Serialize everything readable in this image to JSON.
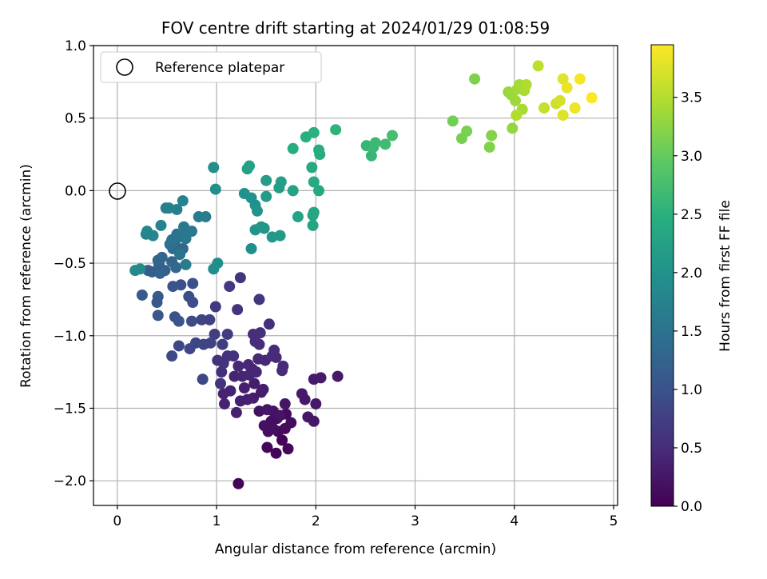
{
  "chart_data": {
    "type": "scatter",
    "title": "FOV centre drift starting at 2024/01/29 01:08:59",
    "xlabel": "Angular distance from reference (arcmin)",
    "ylabel": "Rotation from reference (arcmin)",
    "xlim": [
      -0.24,
      5.04
    ],
    "ylim": [
      -2.17,
      1.0
    ],
    "xticks": [
      0,
      1,
      2,
      3,
      4,
      5
    ],
    "xtick_labels": [
      "0",
      "1",
      "2",
      "3",
      "4",
      "5"
    ],
    "yticks": [
      1.0,
      0.5,
      0.0,
      -0.5,
      -1.0,
      -1.5,
      -2.0
    ],
    "ytick_labels": [
      "1.0",
      "0.5",
      "0.0",
      "−0.5",
      "−1.0",
      "−1.5",
      "−2.0"
    ],
    "grid": true,
    "legend": {
      "position": "upper-left",
      "label": "Reference platepar"
    },
    "reference_point": {
      "x": 0,
      "y": 0
    },
    "colorbar": {
      "label": "Hours from first FF file",
      "colormap": "viridis",
      "range": [
        0.0,
        3.95
      ],
      "ticks": [
        0.0,
        0.5,
        1.0,
        1.5,
        2.0,
        2.5,
        3.0,
        3.5
      ],
      "tick_labels": [
        "0.0",
        "0.5",
        "1.0",
        "1.5",
        "2.0",
        "2.5",
        "3.0",
        "3.5"
      ]
    },
    "series": [
      {
        "values": [
          [
            1.22,
            -2.02,
            0.05
          ],
          [
            1.66,
            -1.72,
            0.05
          ],
          [
            1.51,
            -1.77,
            0.06
          ],
          [
            1.6,
            -1.81,
            0.06
          ],
          [
            1.72,
            -1.78,
            0.08
          ],
          [
            1.62,
            -1.66,
            0.1
          ],
          [
            1.69,
            -1.64,
            0.11
          ],
          [
            1.75,
            -1.6,
            0.12
          ],
          [
            1.7,
            -1.54,
            0.13
          ],
          [
            1.61,
            -1.57,
            0.14
          ],
          [
            1.55,
            -1.59,
            0.15
          ],
          [
            1.52,
            -1.66,
            0.16
          ],
          [
            1.57,
            -1.64,
            0.17
          ],
          [
            1.48,
            -1.62,
            0.18
          ],
          [
            1.43,
            -1.52,
            0.19
          ],
          [
            1.57,
            -1.52,
            0.2
          ],
          [
            1.64,
            -1.55,
            0.22
          ],
          [
            1.69,
            -1.47,
            0.23
          ],
          [
            1.51,
            -1.51,
            0.24
          ],
          [
            1.92,
            -1.56,
            0.25
          ],
          [
            1.98,
            -1.59,
            0.25
          ],
          [
            2.0,
            -1.47,
            0.26
          ],
          [
            1.86,
            -1.4,
            0.27
          ],
          [
            1.89,
            -1.44,
            0.28
          ],
          [
            1.98,
            -1.3,
            0.29
          ],
          [
            2.05,
            -1.29,
            0.29
          ],
          [
            2.22,
            -1.28,
            0.27
          ],
          [
            1.45,
            -1.39,
            0.3
          ],
          [
            1.38,
            -1.33,
            0.32
          ],
          [
            1.37,
            -1.43,
            0.33
          ],
          [
            1.47,
            -1.37,
            0.33
          ],
          [
            1.31,
            -1.44,
            0.34
          ],
          [
            1.28,
            -1.36,
            0.35
          ],
          [
            1.24,
            -1.45,
            0.36
          ],
          [
            1.2,
            -1.53,
            0.37
          ],
          [
            1.08,
            -1.47,
            0.38
          ],
          [
            1.07,
            -1.4,
            0.38
          ],
          [
            1.14,
            -1.38,
            0.39
          ],
          [
            1.18,
            -1.28,
            0.4
          ],
          [
            1.26,
            -1.28,
            0.41
          ],
          [
            1.33,
            -1.27,
            0.42
          ],
          [
            1.36,
            -1.23,
            0.42
          ],
          [
            1.4,
            -1.25,
            0.43
          ],
          [
            1.32,
            -1.2,
            0.44
          ],
          [
            1.22,
            -1.21,
            0.45
          ],
          [
            1.42,
            -1.16,
            0.46
          ],
          [
            1.49,
            -1.17,
            0.46
          ],
          [
            1.6,
            -1.15,
            0.47
          ],
          [
            1.67,
            -1.21,
            0.48
          ],
          [
            1.66,
            -1.24,
            0.48
          ],
          [
            1.56,
            -1.14,
            0.49
          ],
          [
            1.58,
            -1.1,
            0.5
          ],
          [
            1.43,
            -1.06,
            0.5
          ],
          [
            1.39,
            -1.04,
            0.51
          ],
          [
            1.37,
            -0.99,
            0.52
          ],
          [
            1.44,
            -0.98,
            0.53
          ],
          [
            1.53,
            -0.92,
            0.54
          ],
          [
            1.05,
            -1.25,
            0.55
          ],
          [
            1.01,
            -1.17,
            0.56
          ],
          [
            1.07,
            -1.19,
            0.57
          ],
          [
            1.11,
            -1.14,
            0.58
          ],
          [
            1.17,
            -1.14,
            0.58
          ],
          [
            1.04,
            -1.33,
            0.59
          ],
          [
            1.21,
            -0.82,
            0.6
          ],
          [
            1.24,
            -0.6,
            0.62
          ],
          [
            1.43,
            -0.75,
            0.64
          ],
          [
            1.13,
            -0.66,
            0.66
          ],
          [
            0.99,
            -0.8,
            0.68
          ],
          [
            1.11,
            -0.99,
            0.7
          ],
          [
            1.06,
            -1.06,
            0.72
          ],
          [
            0.98,
            -0.99,
            0.74
          ],
          [
            0.93,
            -0.89,
            0.76
          ],
          [
            0.94,
            -1.05,
            0.78
          ],
          [
            0.85,
            -0.89,
            0.8
          ],
          [
            0.87,
            -1.06,
            0.81
          ],
          [
            0.79,
            -1.05,
            0.82
          ],
          [
            0.86,
            -1.3,
            0.83
          ],
          [
            0.73,
            -1.09,
            0.84
          ],
          [
            0.62,
            -1.07,
            0.86
          ],
          [
            0.55,
            -1.14,
            0.88
          ],
          [
            0.75,
            -0.9,
            0.9
          ],
          [
            0.76,
            -0.77,
            0.92
          ],
          [
            0.72,
            -0.73,
            0.94
          ],
          [
            0.76,
            -0.64,
            0.96
          ],
          [
            0.64,
            -0.65,
            0.98
          ],
          [
            0.56,
            -0.66,
            1.0
          ],
          [
            0.58,
            -0.87,
            1.02
          ],
          [
            0.62,
            -0.9,
            1.04
          ],
          [
            0.41,
            -0.86,
            1.06
          ],
          [
            0.4,
            -0.77,
            1.08
          ],
          [
            0.41,
            -0.73,
            1.1
          ],
          [
            0.25,
            -0.72,
            1.12
          ],
          [
            0.35,
            -0.56,
            1.14
          ],
          [
            0.31,
            -0.55,
            1.16
          ],
          [
            0.42,
            -0.55,
            1.18
          ],
          [
            0.48,
            -0.55,
            1.2
          ],
          [
            0.42,
            -0.51,
            1.22
          ],
          [
            0.43,
            -0.57,
            1.24
          ],
          [
            0.41,
            -0.48,
            1.26
          ],
          [
            0.45,
            -0.46,
            1.28
          ],
          [
            0.55,
            -0.49,
            1.3
          ],
          [
            0.59,
            -0.53,
            1.32
          ],
          [
            0.66,
            -0.4,
            1.34
          ],
          [
            0.56,
            -0.4,
            1.36
          ],
          [
            0.58,
            -0.37,
            1.38
          ],
          [
            0.55,
            -0.34,
            1.4
          ],
          [
            0.53,
            -0.37,
            1.42
          ],
          [
            0.58,
            -0.34,
            1.44
          ],
          [
            0.6,
            -0.3,
            1.46
          ],
          [
            0.62,
            -0.32,
            1.48
          ],
          [
            0.55,
            -0.34,
            1.5
          ],
          [
            0.63,
            -0.44,
            1.52
          ],
          [
            0.67,
            -0.29,
            1.54
          ],
          [
            0.69,
            -0.33,
            1.56
          ],
          [
            0.75,
            -0.28,
            1.58
          ],
          [
            0.67,
            -0.25,
            1.6
          ],
          [
            0.69,
            -0.51,
            1.62
          ],
          [
            0.82,
            -0.18,
            1.64
          ],
          [
            0.89,
            -0.18,
            1.66
          ],
          [
            0.6,
            -0.13,
            1.68
          ],
          [
            0.49,
            -0.12,
            1.7
          ],
          [
            0.52,
            -0.12,
            1.72
          ],
          [
            0.66,
            -0.07,
            1.74
          ],
          [
            0.44,
            -0.24,
            1.76
          ],
          [
            0.29,
            -0.3,
            1.78
          ],
          [
            0.36,
            -0.31,
            1.8
          ],
          [
            0.3,
            -0.28,
            1.82
          ],
          [
            0.23,
            -0.54,
            1.84
          ],
          [
            0.18,
            -0.55,
            1.86
          ],
          [
            0.97,
            -0.54,
            1.9
          ],
          [
            1.01,
            -0.5,
            1.92
          ],
          [
            1.35,
            -0.4,
            1.94
          ],
          [
            0.97,
            0.16,
            1.95
          ],
          [
            0.99,
            0.01,
            1.96
          ],
          [
            1.28,
            -0.02,
            1.97
          ],
          [
            1.35,
            -0.05,
            1.99
          ],
          [
            1.39,
            -0.1,
            2.0
          ],
          [
            1.41,
            -0.14,
            2.02
          ],
          [
            1.39,
            -0.27,
            2.04
          ],
          [
            1.45,
            -0.25,
            2.06
          ],
          [
            1.48,
            -0.26,
            2.08
          ],
          [
            1.56,
            -0.32,
            2.1
          ],
          [
            1.64,
            -0.31,
            2.12
          ],
          [
            1.5,
            -0.04,
            2.14
          ],
          [
            1.5,
            0.07,
            2.16
          ],
          [
            1.63,
            0.02,
            2.18
          ],
          [
            1.65,
            0.06,
            2.2
          ],
          [
            1.31,
            0.15,
            2.22
          ],
          [
            1.33,
            0.17,
            2.24
          ],
          [
            1.77,
            0.0,
            2.26
          ],
          [
            1.82,
            -0.18,
            2.28
          ],
          [
            1.97,
            -0.24,
            2.3
          ],
          [
            1.97,
            -0.17,
            2.32
          ],
          [
            1.98,
            -0.15,
            2.34
          ],
          [
            2.03,
            0.0,
            2.36
          ],
          [
            1.98,
            0.06,
            2.38
          ],
          [
            1.96,
            0.16,
            2.4
          ],
          [
            2.04,
            0.25,
            2.42
          ],
          [
            2.03,
            0.28,
            2.44
          ],
          [
            1.77,
            0.29,
            2.46
          ],
          [
            1.9,
            0.37,
            2.48
          ],
          [
            1.98,
            0.4,
            2.5
          ],
          [
            2.2,
            0.42,
            2.55
          ],
          [
            2.51,
            0.31,
            2.6
          ],
          [
            2.56,
            0.24,
            2.62
          ],
          [
            2.58,
            0.3,
            2.64
          ],
          [
            2.6,
            0.33,
            2.66
          ],
          [
            2.7,
            0.32,
            2.7
          ],
          [
            2.77,
            0.38,
            2.75
          ],
          [
            3.38,
            0.48,
            3.1
          ],
          [
            3.47,
            0.36,
            3.12
          ],
          [
            3.52,
            0.41,
            3.14
          ],
          [
            3.6,
            0.77,
            3.16
          ],
          [
            3.75,
            0.3,
            3.18
          ],
          [
            3.77,
            0.38,
            3.2
          ],
          [
            3.98,
            0.43,
            3.3
          ],
          [
            3.94,
            0.68,
            3.32
          ],
          [
            3.97,
            0.66,
            3.34
          ],
          [
            4.01,
            0.62,
            3.36
          ],
          [
            4.03,
            0.7,
            3.38
          ],
          [
            4.05,
            0.73,
            3.4
          ],
          [
            4.08,
            0.56,
            3.42
          ],
          [
            4.1,
            0.69,
            3.44
          ],
          [
            4.12,
            0.73,
            3.46
          ],
          [
            4.02,
            0.52,
            3.48
          ],
          [
            4.24,
            0.86,
            3.55
          ],
          [
            4.3,
            0.57,
            3.6
          ],
          [
            4.42,
            0.6,
            3.65
          ],
          [
            4.46,
            0.62,
            3.7
          ],
          [
            4.49,
            0.52,
            3.75
          ],
          [
            4.49,
            0.77,
            3.78
          ],
          [
            4.53,
            0.71,
            3.82
          ],
          [
            4.61,
            0.57,
            3.86
          ],
          [
            4.66,
            0.77,
            3.9
          ],
          [
            4.78,
            0.64,
            3.94
          ]
        ]
      }
    ]
  }
}
